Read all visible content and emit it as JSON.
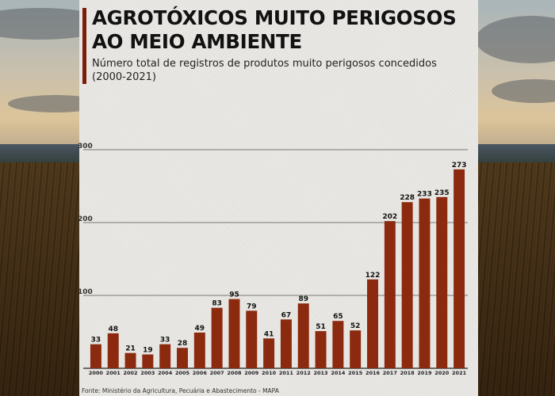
{
  "header": {
    "title": "AGROTÓXICOS MUITO PERIGOSOS AO MEIO AMBIENTE",
    "subtitle": "Número total de registros de produtos muito perigosos concedidos (2000-2021)"
  },
  "footer": {
    "source": "Fonte: Ministério da Agricultura, Pecuária e Abastecimento - MAPA"
  },
  "colors": {
    "bar": "#8b2a0f",
    "accent": "#7a1d0c",
    "grid": "#555555"
  },
  "chart_data": {
    "type": "bar",
    "title": "AGROTÓXICOS MUITO PERIGOSOS AO MEIO AMBIENTE",
    "subtitle": "Número total de registros de produtos muito perigosos concedidos (2000-2021)",
    "xlabel": "",
    "ylabel": "",
    "ylim": [
      0,
      300
    ],
    "yticks": [
      100,
      200,
      300
    ],
    "grid": true,
    "categories": [
      "2000",
      "2001",
      "2002",
      "2003",
      "2004",
      "2005",
      "2006",
      "2007",
      "2008",
      "2009",
      "2010",
      "2011",
      "2012",
      "2013",
      "2014",
      "2015",
      "2016",
      "2017",
      "2018",
      "2019",
      "2020",
      "2021"
    ],
    "values": [
      33,
      48,
      21,
      19,
      33,
      28,
      49,
      83,
      95,
      79,
      41,
      67,
      89,
      51,
      65,
      52,
      122,
      202,
      228,
      233,
      235,
      273
    ]
  }
}
